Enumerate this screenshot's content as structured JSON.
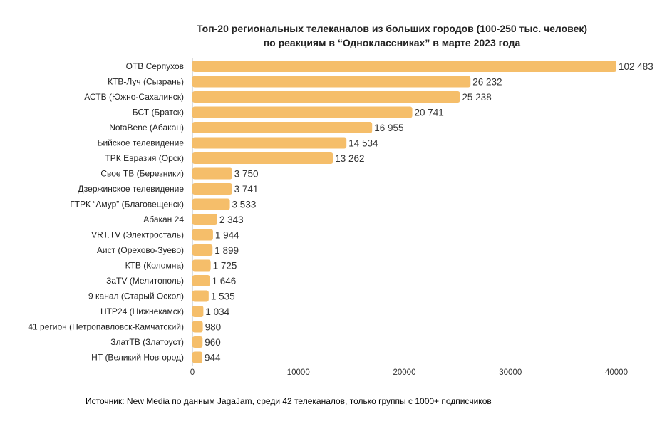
{
  "chart_data": {
    "type": "bar",
    "orientation": "horizontal",
    "title": "Топ-20 региональных телеканалов из больших городов (100-250 тыс. человек)",
    "subtitle": "по реакциям в “Одноклассниках” в марте 2023 года",
    "categories": [
      "ОТВ Серпухов",
      "КТВ-Луч (Сызрань)",
      "АСТВ (Южно-Сахалинск)",
      "БСТ (Братск)",
      "NotaBene (Абакан)",
      "Бийское телевидение",
      "ТРК Евразия (Орск)",
      "Свое ТВ (Березники)",
      "Дзержинское телевидение",
      "ГТРК “Амур” (Благовещенск)",
      "Абакан 24",
      "VRT.TV (Электросталь)",
      "Аист (Орехово-Зуево)",
      "КТВ (Коломна)",
      "ЗаTV (Мелитополь)",
      "9 канал (Старый Оскол)",
      "НТР24 (Нижнекамск)",
      "41 регион (Петропавловск-Камчатский)",
      "ЗлатТВ (Златоуст)",
      "НТ (Великий Новгород)"
    ],
    "values": [
      102483,
      26232,
      25238,
      20741,
      16955,
      14534,
      13262,
      3750,
      3741,
      3533,
      2343,
      1944,
      1899,
      1725,
      1646,
      1535,
      1034,
      980,
      960,
      944
    ],
    "data_labels": [
      "102 483",
      "26 232",
      "25 238",
      "20 741",
      "16 955",
      "14 534",
      "13 262",
      "3 750",
      "3 741",
      "3 533",
      "2 343",
      "1 944",
      "1 899",
      "1 725",
      "1 646",
      "1 535",
      "1 034",
      "980",
      "960",
      "944"
    ],
    "xlim": [
      0,
      40000
    ],
    "xticks": [
      "0",
      "10000",
      "20000",
      "30000",
      "40000"
    ],
    "grid": false,
    "bar_color": "#F5BE6A",
    "xlabel": "",
    "ylabel": ""
  },
  "source": "Источник: New Media по данным JagaJam, среди 42 телеканалов, только группы с 1000+ подписчиков"
}
